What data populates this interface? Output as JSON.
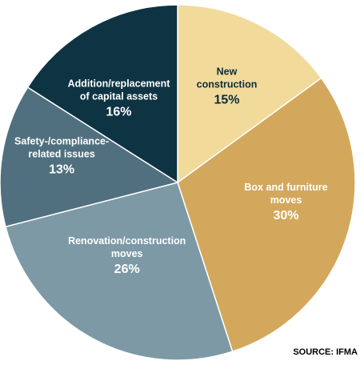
{
  "chart_data": {
    "type": "pie",
    "title": "",
    "slices": [
      {
        "label": "New construction",
        "lines": [
          "New",
          "construction"
        ],
        "value": 15,
        "pct": "15%",
        "color": "#f2da9b",
        "text_color": "#0b2d3c"
      },
      {
        "label": "Box and furniture moves",
        "lines": [
          "Box and furniture",
          "moves"
        ],
        "value": 30,
        "pct": "30%",
        "color": "#d3a85c",
        "text_color": "#ffffff"
      },
      {
        "label": "Renovation/construction moves",
        "lines": [
          "Renovation/construction",
          "moves"
        ],
        "value": 26,
        "pct": "26%",
        "color": "#7d99a6",
        "text_color": "#ffffff"
      },
      {
        "label": "Safety-/compliance-related issues",
        "lines": [
          "Safety-/compliance-",
          "related issues"
        ],
        "value": 13,
        "pct": "13%",
        "color": "#51707f",
        "text_color": "#ffffff"
      },
      {
        "label": "Addition/replacement of capital assets",
        "lines": [
          "Addition/replacement",
          "of capital assets"
        ],
        "value": 16,
        "pct": "16%",
        "color": "#0e3444",
        "text_color": "#ffffff"
      }
    ]
  },
  "source": "SOURCE: IFMA"
}
